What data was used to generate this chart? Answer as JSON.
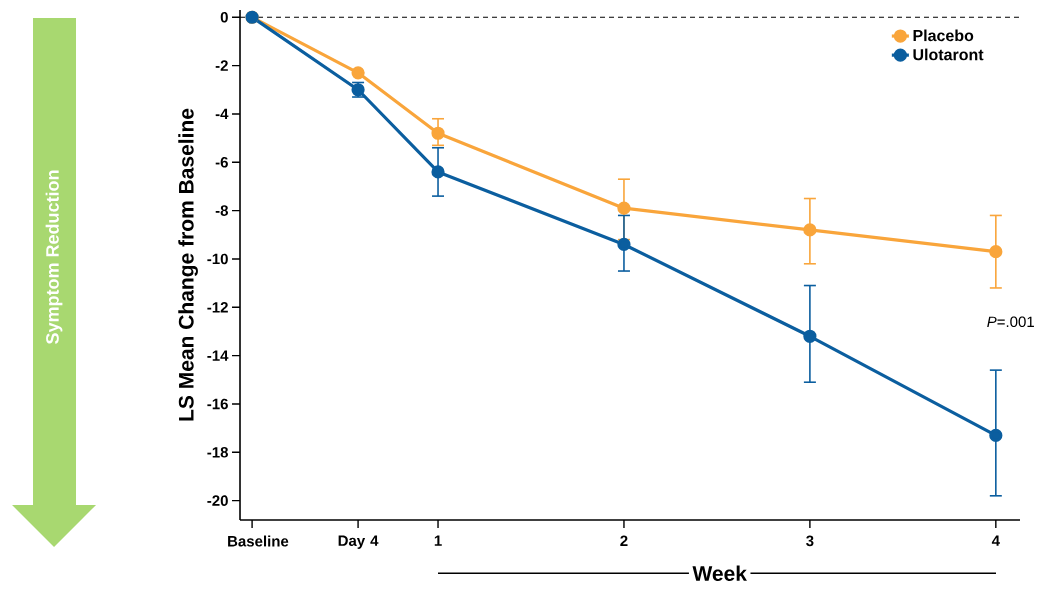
{
  "chart_data": {
    "type": "line",
    "ylabel": "LS Mean Change from Baseline",
    "xlabel": "Week",
    "x": [
      0,
      0.57,
      1,
      2,
      3,
      4
    ],
    "series": [
      {
        "name": "Placebo",
        "color": "#f9a53b",
        "values": [
          0,
          -2.3,
          -4.8,
          -7.9,
          -8.8,
          -9.7
        ],
        "errors": [
          null,
          null,
          [
            -5.3,
            -4.2
          ],
          [
            -9.2,
            -6.7
          ],
          [
            -10.2,
            -7.5
          ],
          [
            -11.2,
            -8.2
          ]
        ]
      },
      {
        "name": "Ulotaront",
        "color": "#0b5e9f",
        "values": [
          0,
          -3.0,
          -6.4,
          -9.4,
          -13.2,
          -17.3
        ],
        "errors": [
          null,
          [
            -3.3,
            -2.7
          ],
          [
            -7.4,
            -5.4
          ],
          [
            -10.5,
            -8.2
          ],
          [
            -15.1,
            -11.1
          ],
          [
            -19.8,
            -14.6
          ]
        ]
      }
    ],
    "xlim": [
      -0.065,
      4.13
    ],
    "ylim": [
      -20.8,
      0.3
    ],
    "xticks": [
      {
        "value": 0,
        "label": "Baseline"
      },
      {
        "value": 0.57,
        "label": "Day 4"
      },
      1,
      2,
      3,
      4
    ],
    "yticks": [
      0,
      -2,
      -4,
      -6,
      -8,
      -10,
      -12,
      -14,
      -16,
      -18,
      -20
    ],
    "ref_lines": [
      {
        "axis": "y",
        "value": 0,
        "line_style": "dashed",
        "color": "#000000"
      }
    ],
    "annotations": [
      "Symptom Reduction",
      "*P*=.001"
    ],
    "legend": "top right",
    "marker": "circle",
    "line_style": "solid",
    "grid": false
  }
}
